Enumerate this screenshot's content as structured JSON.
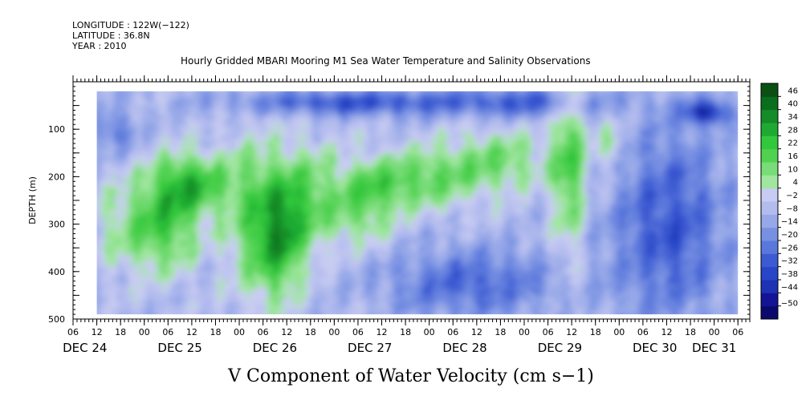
{
  "header": {
    "longitude": "LONGITUDE : 122W(−122)",
    "latitude": "LATITUDE : 36.8N",
    "year": "YEAR : 2010",
    "title": "Hourly Gridded MBARI Mooring M1 Sea Water Temperature and Salinity Observations"
  },
  "chart_data": {
    "type": "heatmap",
    "title": "Hourly Gridded MBARI Mooring M1 Sea Water Temperature and Salinity Observations",
    "variable_label": "V Component of Water Velocity (cm s−1)",
    "ylabel": "DEPTH (m)",
    "y_reversed": true,
    "ylim": [
      0,
      500
    ],
    "y_ticks": [
      100,
      200,
      300,
      400,
      500
    ],
    "x_hours_range": [
      0,
      171
    ],
    "data_hours_range": [
      6,
      168
    ],
    "data_depth_range": [
      20,
      490
    ],
    "x_hour_ticks": [
      {
        "h": 0,
        "label": "06"
      },
      {
        "h": 6,
        "label": "12"
      },
      {
        "h": 12,
        "label": "18"
      },
      {
        "h": 18,
        "label": "00"
      },
      {
        "h": 24,
        "label": "06"
      },
      {
        "h": 30,
        "label": "12"
      },
      {
        "h": 36,
        "label": "18"
      },
      {
        "h": 42,
        "label": "00"
      },
      {
        "h": 48,
        "label": "06"
      },
      {
        "h": 54,
        "label": "12"
      },
      {
        "h": 60,
        "label": "18"
      },
      {
        "h": 66,
        "label": "00"
      },
      {
        "h": 72,
        "label": "06"
      },
      {
        "h": 78,
        "label": "12"
      },
      {
        "h": 84,
        "label": "18"
      },
      {
        "h": 90,
        "label": "00"
      },
      {
        "h": 96,
        "label": "06"
      },
      {
        "h": 102,
        "label": "12"
      },
      {
        "h": 108,
        "label": "18"
      },
      {
        "h": 114,
        "label": "00"
      },
      {
        "h": 120,
        "label": "06"
      },
      {
        "h": 126,
        "label": "12"
      },
      {
        "h": 132,
        "label": "18"
      },
      {
        "h": 138,
        "label": "00"
      },
      {
        "h": 144,
        "label": "06"
      },
      {
        "h": 150,
        "label": "12"
      },
      {
        "h": 156,
        "label": "18"
      },
      {
        "h": 162,
        "label": "00"
      },
      {
        "h": 168,
        "label": "06"
      }
    ],
    "day_labels": [
      {
        "h": 3,
        "label": "DEC 24"
      },
      {
        "h": 27,
        "label": "DEC 25"
      },
      {
        "h": 51,
        "label": "DEC 26"
      },
      {
        "h": 75,
        "label": "DEC 27"
      },
      {
        "h": 99,
        "label": "DEC 28"
      },
      {
        "h": 123,
        "label": "DEC 29"
      },
      {
        "h": 147,
        "label": "DEC 30"
      },
      {
        "h": 162,
        "label": "DEC 31"
      }
    ],
    "colorbar": {
      "levels": [
        -50,
        -44,
        -38,
        -32,
        -26,
        -20,
        -14,
        -8,
        -2,
        4,
        10,
        16,
        22,
        28,
        34,
        40,
        46
      ],
      "labels": [
        "46",
        "40",
        "34",
        "28",
        "22",
        "16",
        "10",
        "4",
        "−2",
        "−8",
        "−14",
        "−20",
        "−26",
        "−32",
        "−38",
        "−44",
        "−50"
      ],
      "colors": [
        "#0a0a6e",
        "#141496",
        "#1e32b4",
        "#2846c8",
        "#3c5ad2",
        "#5a78dc",
        "#7890e2",
        "#96a8e8",
        "#b4bcee",
        "#c8ccf2",
        "#a0e6a0",
        "#78dc78",
        "#50d250",
        "#32c83c",
        "#1eaa32",
        "#148c28",
        "#0a6e1e",
        "#0a5014"
      ]
    },
    "blobs": [
      {
        "h": 16,
        "d": 300,
        "v": 18,
        "rh": 10,
        "rd": 90
      },
      {
        "h": 30,
        "d": 210,
        "v": 28,
        "rh": 10,
        "rd": 60
      },
      {
        "h": 25,
        "d": 290,
        "v": 18,
        "rh": 8,
        "rd": 110
      },
      {
        "h": 45,
        "d": 280,
        "v": 20,
        "rh": 7,
        "rd": 170
      },
      {
        "h": 52,
        "d": 330,
        "v": 30,
        "rh": 6,
        "rd": 120
      },
      {
        "h": 58,
        "d": 240,
        "v": 22,
        "rh": 8,
        "rd": 110
      },
      {
        "h": 72,
        "d": 250,
        "v": 20,
        "rh": 8,
        "rd": 90
      },
      {
        "h": 82,
        "d": 210,
        "v": 18,
        "rh": 10,
        "rd": 60
      },
      {
        "h": 95,
        "d": 190,
        "v": 16,
        "rh": 12,
        "rd": 70
      },
      {
        "h": 110,
        "d": 160,
        "v": 16,
        "rh": 12,
        "rd": 60
      },
      {
        "h": 125,
        "d": 170,
        "v": 26,
        "rh": 4,
        "rd": 200
      },
      {
        "h": 135,
        "d": 130,
        "v": 14,
        "rh": 4,
        "rd": 60
      },
      {
        "h": 100,
        "d": 420,
        "v": -20,
        "rh": 22,
        "rd": 70
      },
      {
        "h": 150,
        "d": 300,
        "v": -24,
        "rh": 14,
        "rd": 200
      },
      {
        "h": 160,
        "d": 60,
        "v": -34,
        "rh": 6,
        "rd": 25
      },
      {
        "h": 70,
        "d": 40,
        "v": -26,
        "rh": 30,
        "rd": 25
      },
      {
        "h": 115,
        "d": 40,
        "v": -20,
        "rh": 20,
        "rd": 30
      },
      {
        "h": 10,
        "d": 100,
        "v": -16,
        "rh": 6,
        "rd": 40
      }
    ]
  }
}
